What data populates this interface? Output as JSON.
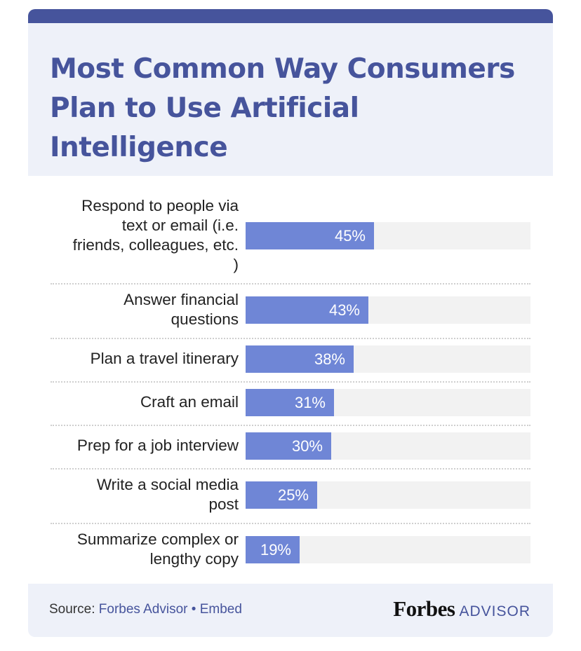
{
  "title": "Most Common Way Consumers Plan to Use Artificial Intelligence",
  "colors": {
    "header_bg": "#eef1f9",
    "accent": "#46549c",
    "bar": "#6f86d6",
    "track": "#f2f2f2"
  },
  "chart_data": {
    "type": "bar",
    "orientation": "horizontal",
    "title": "Most Common Way Consumers Plan to Use Artificial Intelligence",
    "categories": [
      "Respond to people via text or email (i.e. friends, colleagues, etc. )",
      "Answer financial questions",
      "Plan a travel itinerary",
      "Craft an email",
      "Prep for a job interview",
      "Write a social media post",
      "Summarize complex or lengthy copy"
    ],
    "values": [
      45,
      43,
      38,
      31,
      30,
      25,
      19
    ],
    "value_labels": [
      "45%",
      "43%",
      "38%",
      "31%",
      "30%",
      "25%",
      "19%"
    ],
    "xlim": [
      0,
      100
    ],
    "xlabel": "",
    "ylabel": "",
    "grid": false,
    "legend": "none"
  },
  "footer": {
    "source_label": "Source:",
    "source_link": "Forbes Advisor",
    "separator": "•",
    "embed_link": "Embed",
    "brand_forbes": "Forbes",
    "brand_advisor": "ADVISOR"
  }
}
